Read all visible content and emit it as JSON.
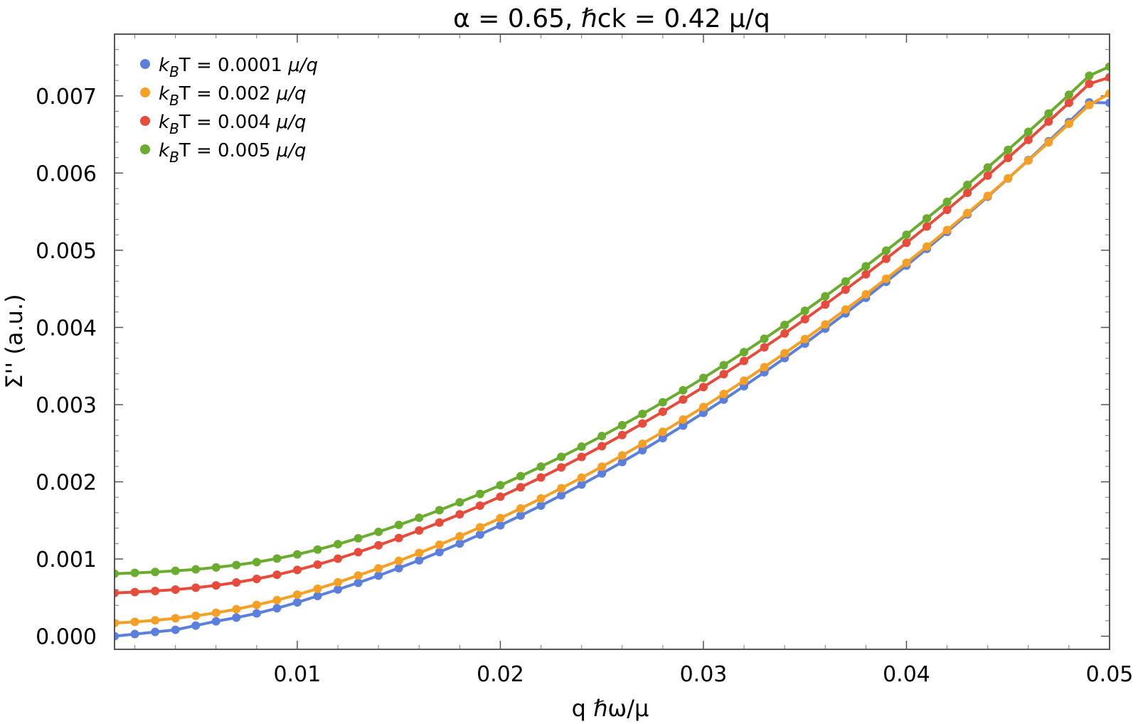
{
  "chart_data": {
    "type": "line",
    "title": "α = 0.65, ℏck = 0.42 μ/q",
    "xlabel": "q ℏω/μ",
    "ylabel": "Σ'' (a.u.)",
    "xlim": [
      0.001,
      0.05
    ],
    "ylim": [
      -0.00017,
      0.0078
    ],
    "x_ticks": [
      0.01,
      0.02,
      0.03,
      0.04,
      0.05
    ],
    "x_tick_labels": [
      "0.01",
      "0.02",
      "0.03",
      "0.04",
      "0.05"
    ],
    "y_ticks": [
      0.0,
      0.001,
      0.002,
      0.003,
      0.004,
      0.005,
      0.006,
      0.007
    ],
    "y_tick_labels": [
      "0.000",
      "0.001",
      "0.002",
      "0.003",
      "0.004",
      "0.005",
      "0.006",
      "0.007"
    ],
    "legend_position": "top-left",
    "x": [
      0.001,
      0.002,
      0.003,
      0.004,
      0.005,
      0.006,
      0.007,
      0.008,
      0.009,
      0.01,
      0.011,
      0.012,
      0.013,
      0.014,
      0.015,
      0.016,
      0.017,
      0.018,
      0.019,
      0.02,
      0.021,
      0.022,
      0.023,
      0.024,
      0.025,
      0.026,
      0.027,
      0.028,
      0.029,
      0.03,
      0.031,
      0.032,
      0.033,
      0.034,
      0.035,
      0.036,
      0.037,
      0.038,
      0.039,
      0.04,
      0.041,
      0.042,
      0.043,
      0.044,
      0.045,
      0.046,
      0.047,
      0.048,
      0.049,
      0.05
    ],
    "series": [
      {
        "name": "kBT = 0.0001 μ/q",
        "legend_main": "k",
        "legend_sub": "B",
        "legend_rest": "T = 0.0001 ",
        "legend_unit": "μ/q",
        "color": "#5b7fdd",
        "values": [
          0.0,
          2.76e-05,
          5.52e-05,
          8.28e-05,
          0.000138,
          0.000193,
          0.000241,
          0.000295,
          0.000362,
          0.000438,
          0.000521,
          0.000605,
          0.000692,
          0.000785,
          0.000882,
          0.000983,
          0.00109,
          0.001201,
          0.001317,
          0.001437,
          0.001563,
          0.001692,
          0.001826,
          0.001965,
          0.002109,
          0.002257,
          0.00241,
          0.002567,
          0.002728,
          0.002894,
          0.003065,
          0.003239,
          0.003419,
          0.003603,
          0.003791,
          0.003985,
          0.004182,
          0.004384,
          0.004591,
          0.004802,
          0.005018,
          0.005239,
          0.005464,
          0.005694,
          0.005929,
          0.006168,
          0.006412,
          0.006661,
          0.006915,
          0.00691
        ]
      },
      {
        "name": "kBT = 0.002 μ/q",
        "legend_main": "k",
        "legend_sub": "B",
        "legend_rest": "T = 0.002 ",
        "legend_unit": "μ/q",
        "color": "#f5a025",
        "values": [
          0.00017,
          0.000186,
          0.000206,
          0.000232,
          0.000264,
          0.000303,
          0.00035,
          0.000405,
          0.000467,
          0.000538,
          0.000615,
          0.000698,
          0.000786,
          0.000879,
          0.000976,
          0.001078,
          0.001184,
          0.001295,
          0.00141,
          0.00153,
          0.001655,
          0.001784,
          0.001917,
          0.002054,
          0.002196,
          0.002342,
          0.002493,
          0.002648,
          0.002807,
          0.00297,
          0.003138,
          0.00331,
          0.003486,
          0.003666,
          0.00385,
          0.004039,
          0.004232,
          0.004429,
          0.004631,
          0.004837,
          0.005047,
          0.005262,
          0.005481,
          0.005704,
          0.005931,
          0.006162,
          0.006398,
          0.006638,
          0.006882,
          0.00703
        ]
      },
      {
        "name": "kBT = 0.004 μ/q",
        "legend_main": "k",
        "legend_sub": "B",
        "legend_rest": "T = 0.004 ",
        "legend_unit": "μ/q",
        "color": "#e64b3c",
        "values": [
          0.00056,
          0.000572,
          0.000586,
          0.000604,
          0.000628,
          0.000658,
          0.000696,
          0.000742,
          0.000796,
          0.000858,
          0.000928,
          0.001005,
          0.001089,
          0.001178,
          0.001272,
          0.00137,
          0.001472,
          0.001579,
          0.001691,
          0.001808,
          0.00193,
          0.002056,
          0.002187,
          0.002322,
          0.002462,
          0.002606,
          0.002755,
          0.002908,
          0.003066,
          0.003228,
          0.003395,
          0.003566,
          0.003742,
          0.003922,
          0.004107,
          0.004296,
          0.00449,
          0.004688,
          0.00489,
          0.005097,
          0.005308,
          0.005524,
          0.005744,
          0.005968,
          0.006197,
          0.00643,
          0.006668,
          0.00691,
          0.007156,
          0.00724
        ]
      },
      {
        "name": "kBT = 0.005 μ/q",
        "legend_main": "k",
        "legend_sub": "B",
        "legend_rest": "T = 0.005 ",
        "legend_unit": "μ/q",
        "color": "#6aac2e",
        "values": [
          0.00081,
          0.00082,
          0.000832,
          0.000847,
          0.000866,
          0.000891,
          0.000922,
          0.00096,
          0.001006,
          0.00106,
          0.001122,
          0.001192,
          0.001269,
          0.001352,
          0.001441,
          0.001534,
          0.001632,
          0.001735,
          0.001843,
          0.001956,
          0.002074,
          0.002197,
          0.002324,
          0.002456,
          0.002593,
          0.002734,
          0.00288,
          0.003031,
          0.003186,
          0.003346,
          0.003511,
          0.00368,
          0.003854,
          0.004033,
          0.004216,
          0.004404,
          0.004596,
          0.004793,
          0.004995,
          0.005201,
          0.005412,
          0.005627,
          0.005847,
          0.006072,
          0.0063,
          0.006534,
          0.006772,
          0.007014,
          0.007261,
          0.00738
        ]
      }
    ]
  }
}
